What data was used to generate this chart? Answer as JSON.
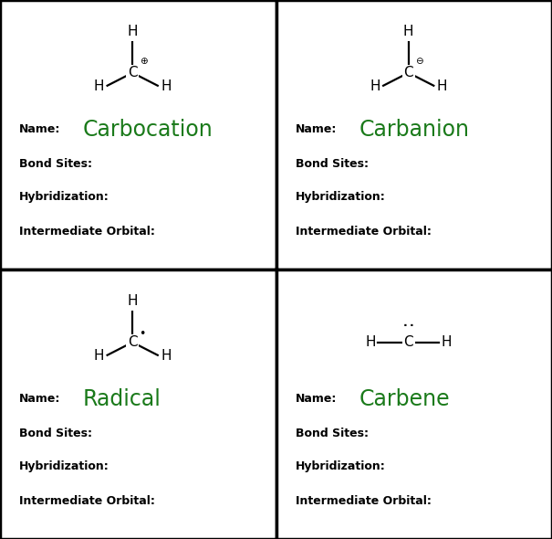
{
  "background_color": "#ffffff",
  "border_color": "#000000",
  "text_color": "#000000",
  "green_color": "#1a7a1a",
  "quadrants": [
    {
      "name": "Carbocation",
      "type": "carbocation",
      "symbol": "⊕",
      "label_text": "Name:",
      "bond_sites": "Bond Sites:",
      "hybridization": "Hybridization:",
      "intermediate": "Intermediate Orbital:"
    },
    {
      "name": "Carbanion",
      "type": "carbanion",
      "symbol": "⊖",
      "label_text": "Name:",
      "bond_sites": "Bond Sites:",
      "hybridization": "Hybridization:",
      "intermediate": "Intermediate Orbital:"
    },
    {
      "name": "Radical",
      "type": "radical",
      "symbol": "•",
      "label_text": "Name:",
      "bond_sites": "Bond Sites:",
      "hybridization": "Hybridization:",
      "intermediate": "Intermediate Orbital:"
    },
    {
      "name": "Carbene",
      "type": "carbene",
      "symbol": "..",
      "label_text": "Name:",
      "bond_sites": "Bond Sites:",
      "hybridization": "Hybridization:",
      "intermediate": "Intermediate Orbital:"
    }
  ]
}
